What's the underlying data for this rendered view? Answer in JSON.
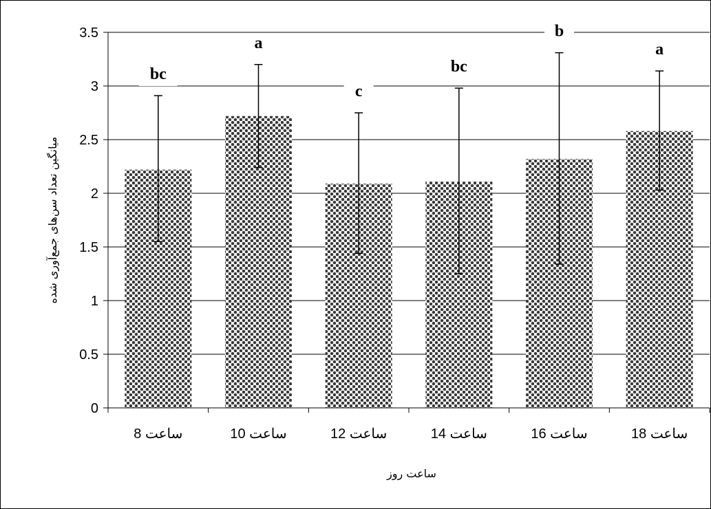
{
  "chart_data": {
    "type": "bar",
    "categories": [
      "ساعت 8",
      "ساعت 10",
      "ساعت 12",
      "ساعت 14",
      "ساعت 16",
      "ساعت 18"
    ],
    "values": [
      2.22,
      2.72,
      2.09,
      2.11,
      2.32,
      2.58
    ],
    "error_upper": [
      2.91,
      3.2,
      2.75,
      2.98,
      3.31,
      3.14
    ],
    "error_lower": [
      1.55,
      2.24,
      1.44,
      1.25,
      1.34,
      2.03
    ],
    "significance_letters": [
      "bc",
      "a",
      "c",
      "bc",
      "b",
      "a"
    ],
    "xlabel": "ساعت روز",
    "ylabel": "میانگین تعداد سن‌های جمع‌آوری شده",
    "ylim": [
      0,
      3.5
    ],
    "yticks": [
      "0",
      "0.5",
      "1",
      "1.5",
      "2",
      "2.5",
      "3",
      "3.5"
    ],
    "grid": "horizontal",
    "bar_pattern": "checkered dots, dark gray"
  }
}
